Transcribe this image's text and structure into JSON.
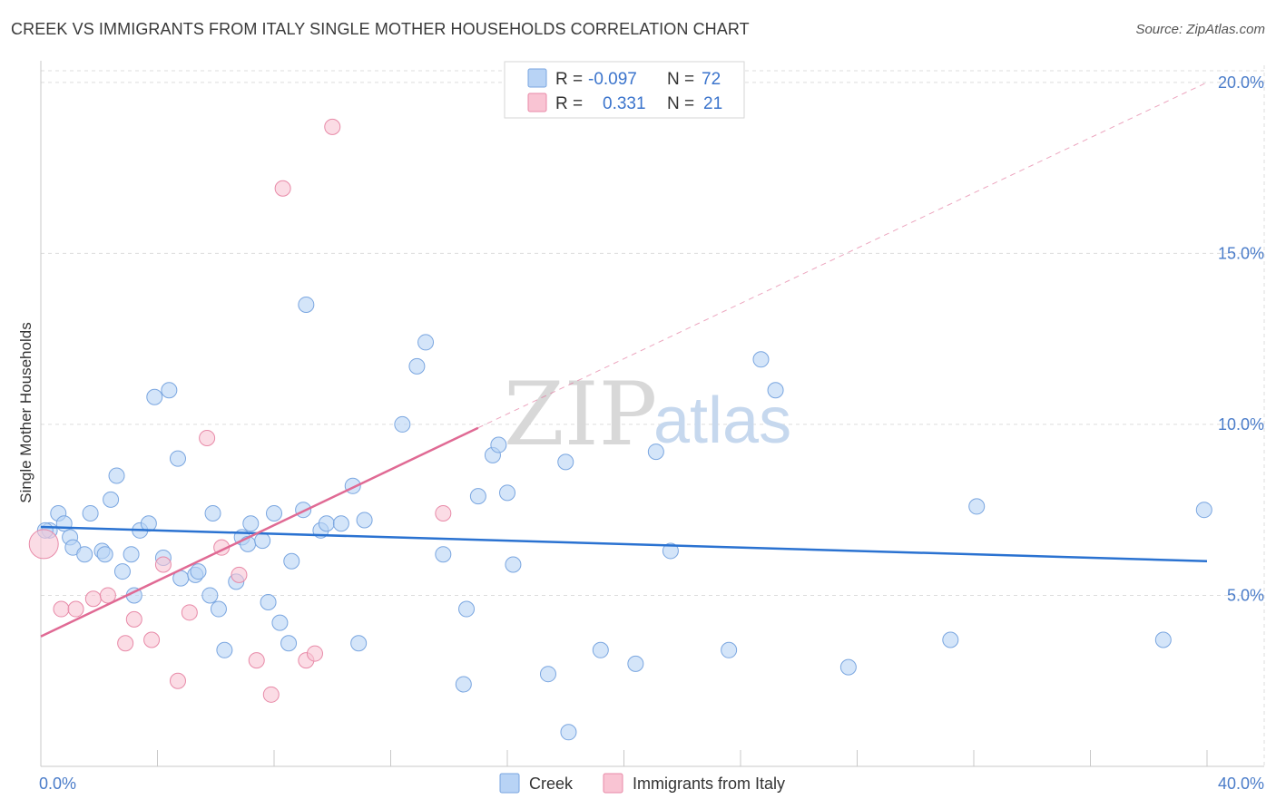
{
  "header": {
    "title": "CREEK VS IMMIGRANTS FROM ITALY SINGLE MOTHER HOUSEHOLDS CORRELATION CHART",
    "source": "Source: ZipAtlas.com"
  },
  "watermark": {
    "zip": "ZIP",
    "atlas": "atlas"
  },
  "colors": {
    "creek_fill": "#b8d3f5",
    "creek_stroke": "#7aa6e0",
    "creek_line": "#2a72d1",
    "italy_fill": "#f9c4d3",
    "italy_stroke": "#e88aa8",
    "italy_line": "#e06a94",
    "tick_color": "#4a7cc9",
    "grid": "#dddddd"
  },
  "legend_top": {
    "rows": [
      {
        "r_label": "R =",
        "r_value": "-0.097",
        "n_label": "N =",
        "n_value": "72"
      },
      {
        "r_label": "R =",
        "r_value": "0.331",
        "n_label": "N =",
        "n_value": "21"
      }
    ]
  },
  "legend_bottom": {
    "items": [
      "Creek",
      "Immigrants from Italy"
    ]
  },
  "chart_data": {
    "type": "scatter",
    "title": "CREEK VS IMMIGRANTS FROM ITALY SINGLE MOTHER HOUSEHOLDS CORRELATION CHART",
    "xlabel": "",
    "ylabel": "Single Mother Households",
    "xlim": [
      0,
      40
    ],
    "ylim": [
      0,
      20.5
    ],
    "x_tick_labels": [
      "0.0%",
      "40.0%"
    ],
    "y_tick_labels": [
      "5.0%",
      "10.0%",
      "15.0%",
      "20.0%"
    ],
    "y_ticks": [
      5,
      10,
      15,
      20
    ],
    "grid": true,
    "series": [
      {
        "name": "Creek",
        "R": -0.097,
        "N": 72,
        "trend": {
          "x": [
            0,
            40
          ],
          "y": [
            7.0,
            6.0
          ]
        },
        "points": [
          [
            0.3,
            6.9
          ],
          [
            0.6,
            7.4
          ],
          [
            0.8,
            7.1
          ],
          [
            1.0,
            6.7
          ],
          [
            1.1,
            6.4
          ],
          [
            1.5,
            6.2
          ],
          [
            1.7,
            7.4
          ],
          [
            2.1,
            6.3
          ],
          [
            2.2,
            6.2
          ],
          [
            2.4,
            7.8
          ],
          [
            2.6,
            8.5
          ],
          [
            2.8,
            5.7
          ],
          [
            3.1,
            6.2
          ],
          [
            3.2,
            5.0
          ],
          [
            3.4,
            6.9
          ],
          [
            3.7,
            7.1
          ],
          [
            3.9,
            10.8
          ],
          [
            4.2,
            6.1
          ],
          [
            4.4,
            11.0
          ],
          [
            4.7,
            9.0
          ],
          [
            4.8,
            5.5
          ],
          [
            5.3,
            5.6
          ],
          [
            5.4,
            5.7
          ],
          [
            5.8,
            5.0
          ],
          [
            5.9,
            7.4
          ],
          [
            6.1,
            4.6
          ],
          [
            6.3,
            3.4
          ],
          [
            6.7,
            5.4
          ],
          [
            6.9,
            6.7
          ],
          [
            7.1,
            6.5
          ],
          [
            7.2,
            7.1
          ],
          [
            7.6,
            6.6
          ],
          [
            7.8,
            4.8
          ],
          [
            8.0,
            7.4
          ],
          [
            8.2,
            4.2
          ],
          [
            8.5,
            3.6
          ],
          [
            8.6,
            6.0
          ],
          [
            9.0,
            7.5
          ],
          [
            9.1,
            13.5
          ],
          [
            9.6,
            6.9
          ],
          [
            9.8,
            7.1
          ],
          [
            10.3,
            7.1
          ],
          [
            10.7,
            8.2
          ],
          [
            10.9,
            3.6
          ],
          [
            11.1,
            7.2
          ],
          [
            12.4,
            10.0
          ],
          [
            12.9,
            11.7
          ],
          [
            13.2,
            12.4
          ],
          [
            13.8,
            6.2
          ],
          [
            14.6,
            4.6
          ],
          [
            14.5,
            2.4
          ],
          [
            15.0,
            7.9
          ],
          [
            15.5,
            9.1
          ],
          [
            15.7,
            9.4
          ],
          [
            16.0,
            8.0
          ],
          [
            16.2,
            5.9
          ],
          [
            17.4,
            2.7
          ],
          [
            18.0,
            8.9
          ],
          [
            18.1,
            1.0
          ],
          [
            19.2,
            3.4
          ],
          [
            20.4,
            3.0
          ],
          [
            21.1,
            9.2
          ],
          [
            21.6,
            6.3
          ],
          [
            23.6,
            3.4
          ],
          [
            24.7,
            11.9
          ],
          [
            25.2,
            11.0
          ],
          [
            27.7,
            2.9
          ],
          [
            31.2,
            3.7
          ],
          [
            32.1,
            7.6
          ],
          [
            38.5,
            3.7
          ],
          [
            39.9,
            7.5
          ],
          [
            0.15,
            6.9
          ]
        ]
      },
      {
        "name": "Immigrants from Italy",
        "R": 0.331,
        "N": 21,
        "trend": {
          "x": [
            0,
            15
          ],
          "y": [
            3.8,
            9.9
          ]
        },
        "trend_extension": {
          "x": [
            15,
            40
          ],
          "y": [
            9.9,
            20.0
          ]
        },
        "points": [
          [
            0.1,
            6.5
          ],
          [
            0.7,
            4.6
          ],
          [
            1.2,
            4.6
          ],
          [
            1.8,
            4.9
          ],
          [
            2.3,
            5.0
          ],
          [
            2.9,
            3.6
          ],
          [
            3.2,
            4.3
          ],
          [
            3.8,
            3.7
          ],
          [
            4.2,
            5.9
          ],
          [
            4.7,
            2.5
          ],
          [
            5.1,
            4.5
          ],
          [
            5.7,
            9.6
          ],
          [
            6.2,
            6.4
          ],
          [
            6.8,
            5.6
          ],
          [
            7.4,
            3.1
          ],
          [
            7.9,
            2.1
          ],
          [
            8.3,
            16.9
          ],
          [
            9.1,
            3.1
          ],
          [
            9.4,
            3.3
          ],
          [
            10.0,
            18.7
          ],
          [
            13.8,
            7.4
          ]
        ]
      }
    ]
  }
}
